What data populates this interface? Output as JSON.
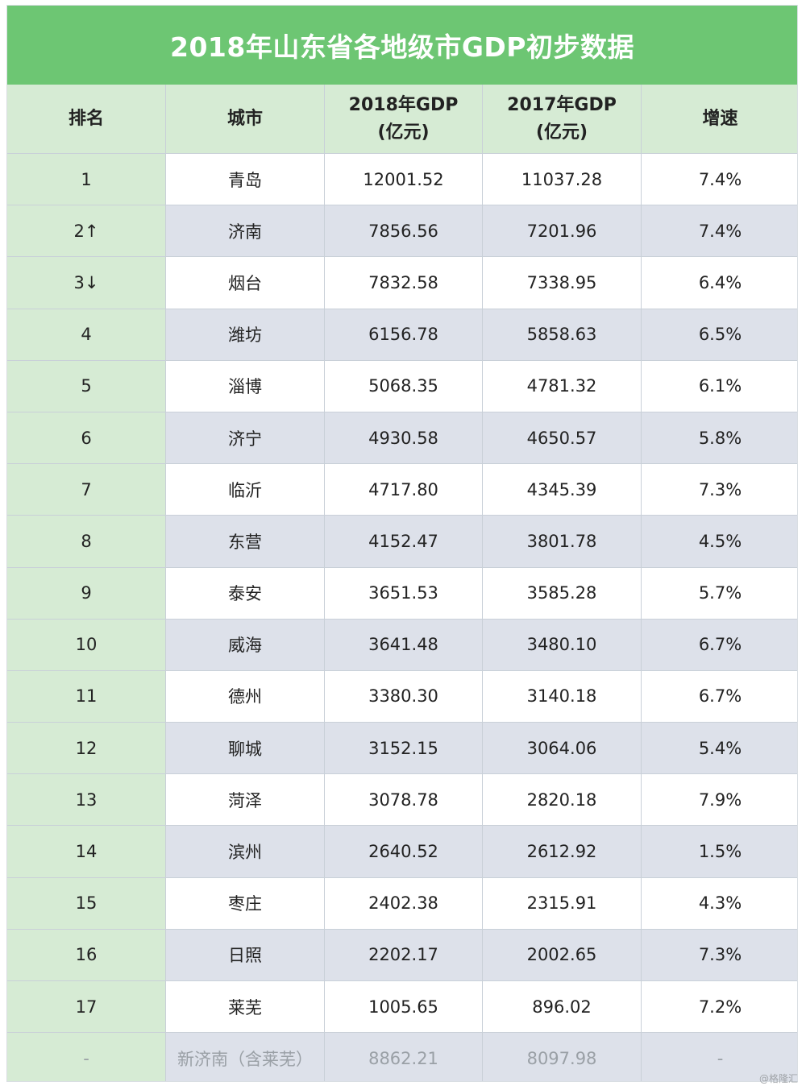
{
  "title": "2018年山东省各地级市GDP初步数据",
  "headers": [
    "排名",
    "城市",
    "2018年GDP\n(亿元)",
    "2017年GDP\n(亿元)",
    "增速"
  ],
  "rows": [
    [
      "1",
      "青岛",
      "12001.52",
      "11037.28",
      "7.4%"
    ],
    [
      "2↑",
      "济南",
      "7856.56",
      "7201.96",
      "7.4%"
    ],
    [
      "3↓",
      "烟台",
      "7832.58",
      "7338.95",
      "6.4%"
    ],
    [
      "4",
      "潍坊",
      "6156.78",
      "5858.63",
      "6.5%"
    ],
    [
      "5",
      "淄博",
      "5068.35",
      "4781.32",
      "6.1%"
    ],
    [
      "6",
      "济宁",
      "4930.58",
      "4650.57",
      "5.8%"
    ],
    [
      "7",
      "临沂",
      "4717.80",
      "4345.39",
      "7.3%"
    ],
    [
      "8",
      "东营",
      "4152.47",
      "3801.78",
      "4.5%"
    ],
    [
      "9",
      "泰安",
      "3651.53",
      "3585.28",
      "5.7%"
    ],
    [
      "10",
      "威海",
      "3641.48",
      "3480.10",
      "6.7%"
    ],
    [
      "11",
      "德州",
      "3380.30",
      "3140.18",
      "6.7%"
    ],
    [
      "12",
      "聊城",
      "3152.15",
      "3064.06",
      "5.4%"
    ],
    [
      "13",
      "菏泽",
      "3078.78",
      "2820.18",
      "7.9%"
    ],
    [
      "14",
      "滨州",
      "2640.52",
      "2612.92",
      "1.5%"
    ],
    [
      "15",
      "枣庄",
      "2402.38",
      "2315.91",
      "4.3%"
    ],
    [
      "16",
      "日照",
      "2202.17",
      "2002.65",
      "7.3%"
    ],
    [
      "17",
      "莱芜",
      "1005.65",
      "896.02",
      "7.2%"
    ]
  ],
  "footer_row": [
    "-",
    "新济南（含莱芜）",
    "8862.21",
    "8097.98",
    "-"
  ],
  "watermark": "@格隆汇",
  "colors": {
    "title_bg": "#6dc673",
    "header_bg": "#d6ebd4",
    "row_alt_bg": "#dde1ea",
    "border": "#c9d0d8"
  }
}
